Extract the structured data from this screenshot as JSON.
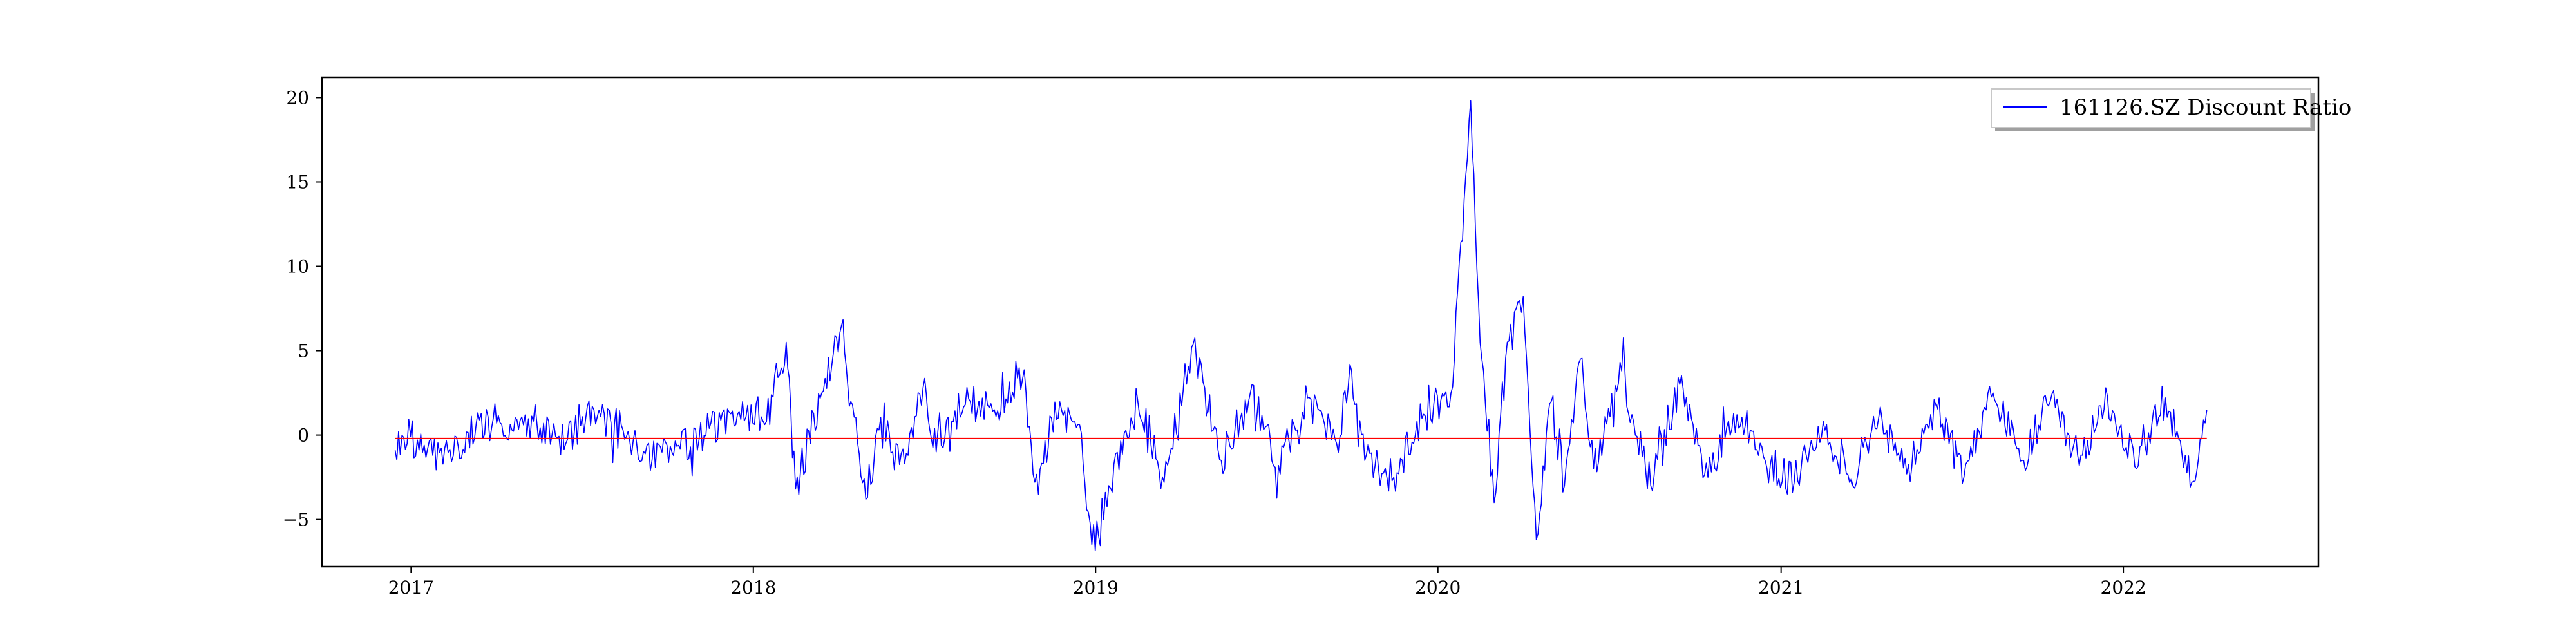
{
  "chart_data": {
    "type": "line",
    "title": "",
    "xlabel": "",
    "ylabel": "",
    "x_range": [
      "2016-12-15",
      "2022-03-31"
    ],
    "xlim": [
      "2016-09-28",
      "2022-07-28"
    ],
    "ylim": [
      -7.8,
      21.2
    ],
    "x_ticks": [
      "2017",
      "2018",
      "2019",
      "2020",
      "2021",
      "2022"
    ],
    "y_ticks": [
      -5,
      0,
      5,
      10,
      15,
      20
    ],
    "grid": false,
    "legend_position": "top-right",
    "series": [
      {
        "name": "161126.SZ Discount Ratio",
        "color": "#0000ff",
        "points": [
          [
            "2016-12-15",
            -0.9
          ],
          [
            "2017-01-15",
            -0.6
          ],
          [
            "2017-02-15",
            -1.2
          ],
          [
            "2017-03-15",
            0.9
          ],
          [
            "2017-04-15",
            -0.3
          ],
          [
            "2017-05-15",
            0.8
          ],
          [
            "2017-06-15",
            -0.5
          ],
          [
            "2017-07-15",
            1.5
          ],
          [
            "2017-08-15",
            0.3
          ],
          [
            "2017-09-15",
            -1.5
          ],
          [
            "2017-10-15",
            -0.8
          ],
          [
            "2017-11-15",
            0.4
          ],
          [
            "2017-12-15",
            1.2
          ],
          [
            "2018-01-15",
            0.8
          ],
          [
            "2018-02-05",
            5.5
          ],
          [
            "2018-02-15",
            -3.2
          ],
          [
            "2018-03-15",
            2.5
          ],
          [
            "2018-04-05",
            6.5
          ],
          [
            "2018-04-15",
            2.0
          ],
          [
            "2018-05-01",
            -3.8
          ],
          [
            "2018-05-15",
            0.3
          ],
          [
            "2018-06-15",
            -1.2
          ],
          [
            "2018-07-01",
            2.8
          ],
          [
            "2018-07-15",
            -1.0
          ],
          [
            "2018-08-15",
            1.8
          ],
          [
            "2018-09-15",
            1.5
          ],
          [
            "2018-10-15",
            3.3
          ],
          [
            "2018-11-01",
            -3.5
          ],
          [
            "2018-11-15",
            1.0
          ],
          [
            "2018-12-15",
            0.6
          ],
          [
            "2018-12-28",
            -6.5
          ],
          [
            "2019-01-15",
            -3.0
          ],
          [
            "2019-02-15",
            2.0
          ],
          [
            "2019-03-15",
            -2.8
          ],
          [
            "2019-04-01",
            2.5
          ],
          [
            "2019-04-15",
            5.4
          ],
          [
            "2019-05-15",
            -1.5
          ],
          [
            "2019-06-15",
            2.5
          ],
          [
            "2019-07-15",
            -1.8
          ],
          [
            "2019-08-15",
            2.2
          ],
          [
            "2019-09-15",
            -0.5
          ],
          [
            "2019-10-01",
            3.8
          ],
          [
            "2019-10-15",
            -1.5
          ],
          [
            "2019-11-15",
            -2.5
          ],
          [
            "2019-12-15",
            1.0
          ],
          [
            "2020-01-15",
            2.5
          ],
          [
            "2020-02-05",
            19.8
          ],
          [
            "2020-02-15",
            5.5
          ],
          [
            "2020-03-01",
            -4.0
          ],
          [
            "2020-03-15",
            5.5
          ],
          [
            "2020-04-01",
            8.2
          ],
          [
            "2020-04-15",
            -6.2
          ],
          [
            "2020-05-01",
            2.0
          ],
          [
            "2020-05-15",
            -3.0
          ],
          [
            "2020-06-01",
            4.5
          ],
          [
            "2020-06-15",
            -2.0
          ],
          [
            "2020-07-15",
            3.8
          ],
          [
            "2020-08-15",
            -3.0
          ],
          [
            "2020-09-15",
            3.0
          ],
          [
            "2020-10-15",
            -2.5
          ],
          [
            "2020-11-15",
            1.2
          ],
          [
            "2020-12-15",
            -1.5
          ],
          [
            "2021-01-15",
            -2.8
          ],
          [
            "2021-02-15",
            0.8
          ],
          [
            "2021-03-15",
            -2.8
          ],
          [
            "2021-04-15",
            1.0
          ],
          [
            "2021-05-15",
            -2.3
          ],
          [
            "2021-06-15",
            1.8
          ],
          [
            "2021-07-15",
            -2.5
          ],
          [
            "2021-08-15",
            2.5
          ],
          [
            "2021-09-15",
            -1.5
          ],
          [
            "2021-10-15",
            2.0
          ],
          [
            "2021-11-15",
            -1.8
          ],
          [
            "2021-12-15",
            2.3
          ],
          [
            "2022-01-15",
            -2.0
          ],
          [
            "2022-02-15",
            2.2
          ],
          [
            "2022-03-15",
            -2.8
          ],
          [
            "2022-03-31",
            1.5
          ]
        ]
      }
    ],
    "reference_line": {
      "color": "#ff0000",
      "value": -0.2
    }
  }
}
